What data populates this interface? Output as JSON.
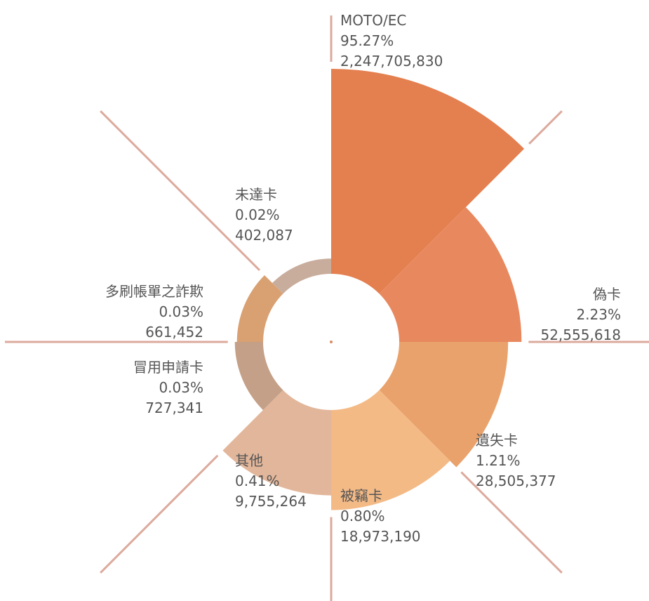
{
  "chart_data": {
    "type": "rose",
    "categories": [
      "MOTO/EC",
      "偽卡",
      "遺失卡",
      "被竊卡",
      "其他",
      "冒用申請卡",
      "多刷帳單之詐欺",
      "未達卡"
    ],
    "values": [
      2247705830,
      52555618,
      28505377,
      18973190,
      9755264,
      727341,
      661452,
      402087
    ],
    "value_labels": [
      "2,247,705,830",
      "52,555,618",
      "28,505,377",
      "18,973,190",
      "9,755,264",
      "727,341",
      "661,452",
      "402,087"
    ],
    "percents": [
      95.27,
      2.23,
      1.21,
      0.8,
      0.41,
      0.03,
      0.03,
      0.02
    ],
    "percent_labels": [
      "95.27%",
      "2.23%",
      "1.21%",
      "0.80%",
      "0.41%",
      "0.03%",
      "0.03%",
      "0.02%"
    ],
    "colors": [
      "#e47f4f",
      "#e8885e",
      "#e9a26c",
      "#f3ba86",
      "#e2b69a",
      "#c4a088",
      "#d9a071",
      "#c9ad9c"
    ]
  }
}
